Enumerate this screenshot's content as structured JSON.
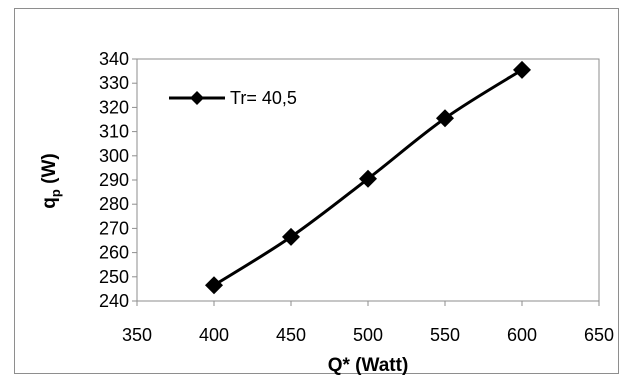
{
  "chart_data": {
    "type": "line",
    "title": "",
    "xlabel": "Q* (Watt)",
    "ylabel": "q",
    "ylabel_sub": "p",
    "ylabel_unit": "(W)",
    "xlim": [
      350,
      650
    ],
    "ylim": [
      240,
      340
    ],
    "xticks": [
      350,
      400,
      450,
      500,
      550,
      600,
      650
    ],
    "yticks": [
      240,
      250,
      260,
      270,
      280,
      290,
      300,
      310,
      320,
      330,
      340
    ],
    "grid": false,
    "legend_position": "top-left",
    "series": [
      {
        "name": "Tr= 40,5",
        "color": "#000000",
        "marker": "diamond",
        "x": [
          400,
          450,
          500,
          550,
          600
        ],
        "y": [
          246.5,
          266.5,
          290.5,
          315.5,
          335.5
        ]
      }
    ]
  }
}
